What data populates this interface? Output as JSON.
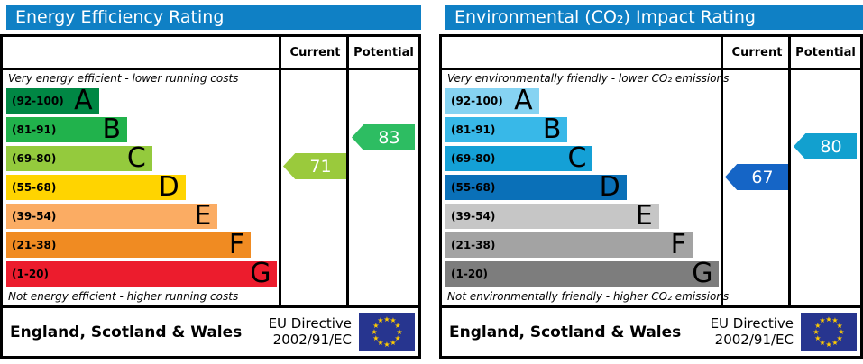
{
  "style": {
    "header_bg": "#0f80c5",
    "flag_bg": "#27358f",
    "star_color": "#ffcc00"
  },
  "chart_data": [
    {
      "type": "bar",
      "title": "Energy Efficiency Rating",
      "columns": {
        "current": "Current",
        "potential": "Potential"
      },
      "top_caption": "Very energy efficient - lower running costs",
      "bottom_caption": "Not energy efficient - higher running costs",
      "bands": [
        {
          "letter": "A",
          "label": "(92-100)",
          "low": 92,
          "high": 100,
          "color": "#008744",
          "width_pct": 34
        },
        {
          "letter": "B",
          "label": "(81-91)",
          "low": 81,
          "high": 91,
          "color": "#21b24c",
          "width_pct": 44.4
        },
        {
          "letter": "C",
          "label": "(69-80)",
          "low": 69,
          "high": 80,
          "color": "#94ca3d",
          "width_pct": 53.6
        },
        {
          "letter": "D",
          "label": "(55-68)",
          "low": 55,
          "high": 68,
          "color": "#ffd400",
          "width_pct": 65.8
        },
        {
          "letter": "E",
          "label": "(39-54)",
          "low": 39,
          "high": 54,
          "color": "#fbac63",
          "width_pct": 77.6
        },
        {
          "letter": "F",
          "label": "(21-38)",
          "low": 21,
          "high": 38,
          "color": "#f08b22",
          "width_pct": 89.8
        },
        {
          "letter": "G",
          "label": "(1-20)",
          "low": 1,
          "high": 20,
          "color": "#ec1c2d",
          "width_pct": 99.5
        }
      ],
      "current": {
        "value": 71,
        "band": "C",
        "color": "#9aca3c"
      },
      "potential": {
        "value": 83,
        "band": "B",
        "color": "#2dbd62"
      },
      "footer_region": "England, Scotland & Wales",
      "directive_line1": "EU Directive",
      "directive_line2": "2002/91/EC"
    },
    {
      "type": "bar",
      "title": "Environmental (CO₂) Impact Rating",
      "columns": {
        "current": "Current",
        "potential": "Potential"
      },
      "top_caption": "Very environmentally friendly - lower CO₂ emissions",
      "bottom_caption": "Not environmentally friendly - higher CO₂ emissions",
      "bands": [
        {
          "letter": "A",
          "label": "(92-100)",
          "low": 92,
          "high": 100,
          "color": "#86d3f2",
          "width_pct": 34
        },
        {
          "letter": "B",
          "label": "(81-91)",
          "low": 81,
          "high": 91,
          "color": "#38b8e8",
          "width_pct": 44.4
        },
        {
          "letter": "C",
          "label": "(69-80)",
          "low": 69,
          "high": 80,
          "color": "#14a0d6",
          "width_pct": 53.6
        },
        {
          "letter": "D",
          "label": "(55-68)",
          "low": 55,
          "high": 68,
          "color": "#0a70b8",
          "width_pct": 65.8
        },
        {
          "letter": "E",
          "label": "(39-54)",
          "low": 39,
          "high": 54,
          "color": "#c6c6c6",
          "width_pct": 77.6
        },
        {
          "letter": "F",
          "label": "(21-38)",
          "low": 21,
          "high": 38,
          "color": "#a3a3a3",
          "width_pct": 89.8
        },
        {
          "letter": "G",
          "label": "(1-20)",
          "low": 1,
          "high": 20,
          "color": "#7d7d7d",
          "width_pct": 99.5
        }
      ],
      "current": {
        "value": 67,
        "band": "D",
        "color": "#1565c6"
      },
      "potential": {
        "value": 80,
        "band": "C",
        "color": "#12a0cf"
      },
      "footer_region": "England, Scotland & Wales",
      "directive_line1": "EU Directive",
      "directive_line2": "2002/91/EC"
    }
  ]
}
